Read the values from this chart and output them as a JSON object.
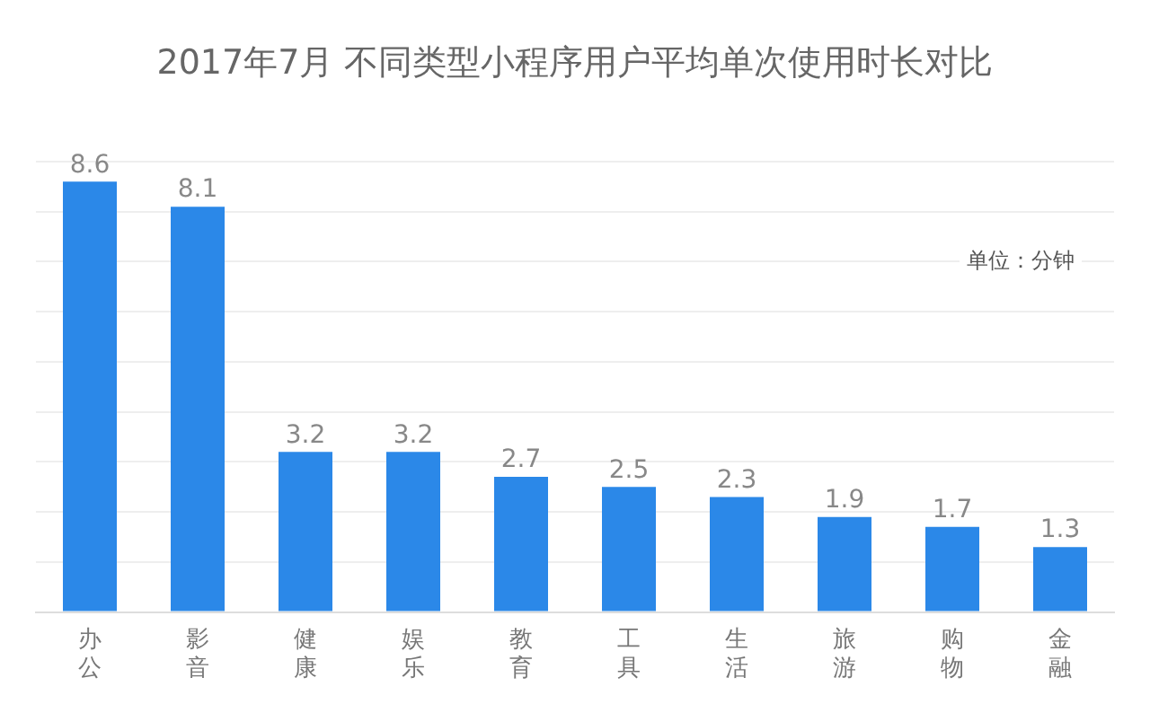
{
  "chart_data": {
    "type": "bar",
    "title": "2017年7月 不同类型小程序用户平均单次使用时长对比",
    "categories": [
      "办公",
      "影音",
      "健康",
      "娱乐",
      "教育",
      "工具",
      "生活",
      "旅游",
      "购物",
      "金融"
    ],
    "values": [
      8.6,
      8.1,
      3.2,
      3.2,
      2.7,
      2.5,
      2.3,
      1.9,
      1.7,
      1.3
    ],
    "color": "#2b88e8",
    "ylim": [
      0,
      9
    ],
    "yticks": [
      {
        "value": 0,
        "label": null
      },
      {
        "value": 1,
        "label": null
      },
      {
        "value": 2,
        "label": null
      },
      {
        "value": 3,
        "label": null
      },
      {
        "value": 4,
        "label": null
      },
      {
        "value": 5,
        "label": null
      },
      {
        "value": 6,
        "label": null
      },
      {
        "value": 7,
        "label": null
      },
      {
        "value": 8,
        "label": null
      },
      {
        "value": 9,
        "label": null
      }
    ],
    "grid": "y",
    "data_labels": true,
    "tick_labels": "x",
    "annotations": [
      "单位：分钟"
    ]
  }
}
